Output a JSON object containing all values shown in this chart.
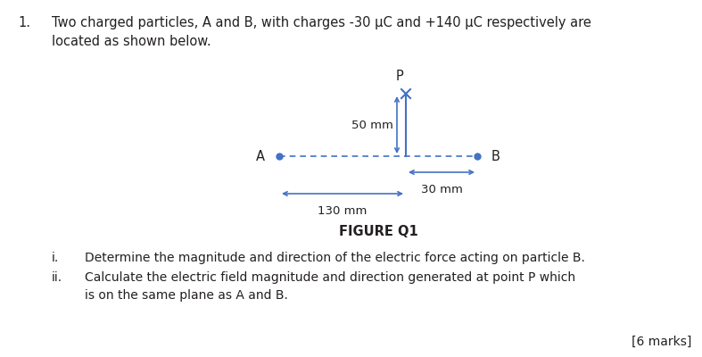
{
  "title_number": "1.",
  "title_text": "Two charged particles, A and B, with charges -30 μC and +140 μC respectively are\nlocated as shown below.",
  "figure_label": "FIGURE Q1",
  "sub_questions": [
    {
      "num": "i.",
      "text": "Determine the magnitude and direction of the electric force acting on particle B."
    },
    {
      "num": "ii.",
      "text": "Calculate the electric field magnitude and direction generated at point P which\nis on the same plane as A and B."
    }
  ],
  "marks": "[6 marks]",
  "bg_color": "#ffffff",
  "text_color": "#231f20",
  "diagram_color": "#4472c4",
  "dim_label_50mm": "50 mm",
  "dim_label_30mm": "30 mm",
  "dim_label_130mm": "130 mm",
  "label_A": "A",
  "label_B": "B",
  "label_P": "P"
}
